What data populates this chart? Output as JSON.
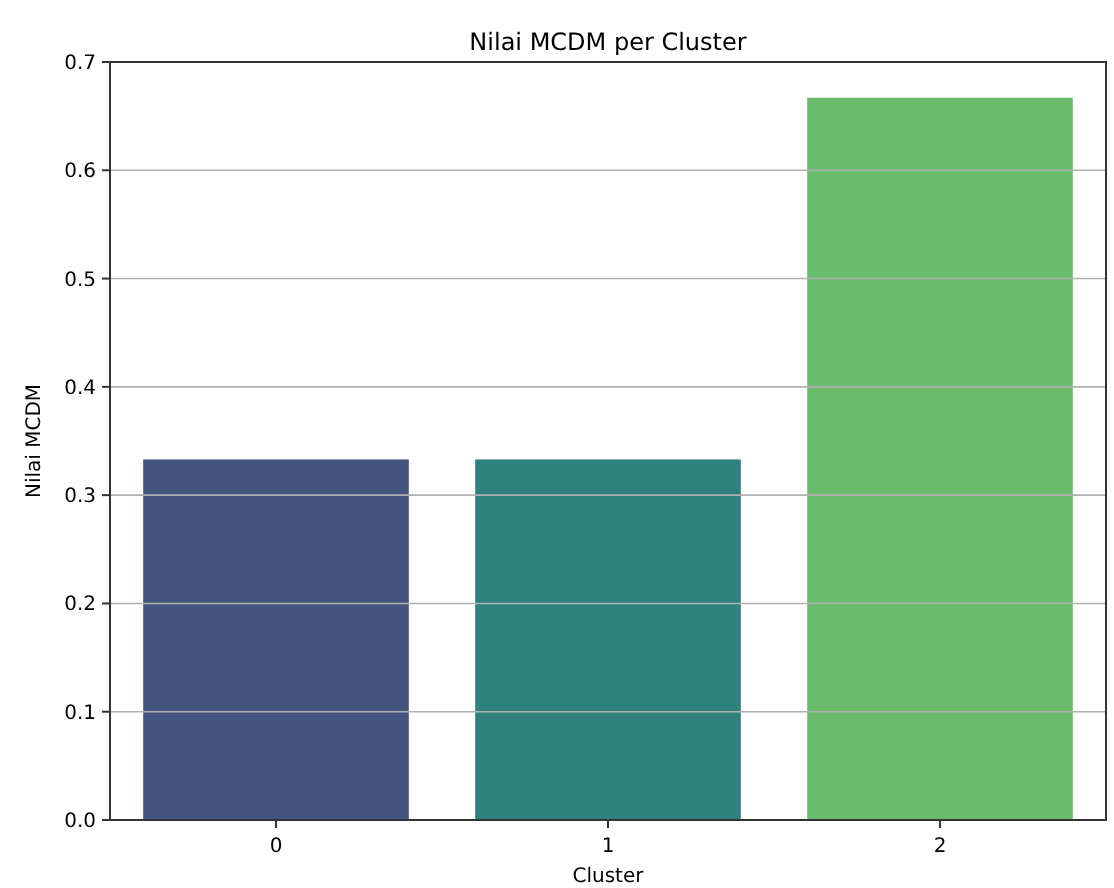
{
  "chart_data": {
    "type": "bar",
    "title": "Nilai MCDM per Cluster",
    "xlabel": "Cluster",
    "ylabel": "Nilai MCDM",
    "categories": [
      "0",
      "1",
      "2"
    ],
    "values": [
      0.333,
      0.333,
      0.667
    ],
    "colors": [
      "#43557f",
      "#2e817c",
      "#6aba6b"
    ],
    "ylim": [
      0,
      0.7
    ],
    "yticks": [
      {
        "value": 0,
        "label": "0.0"
      },
      0.1,
      0.2,
      0.3,
      0.4,
      0.5,
      0.6,
      0.7
    ],
    "grid": "y"
  }
}
